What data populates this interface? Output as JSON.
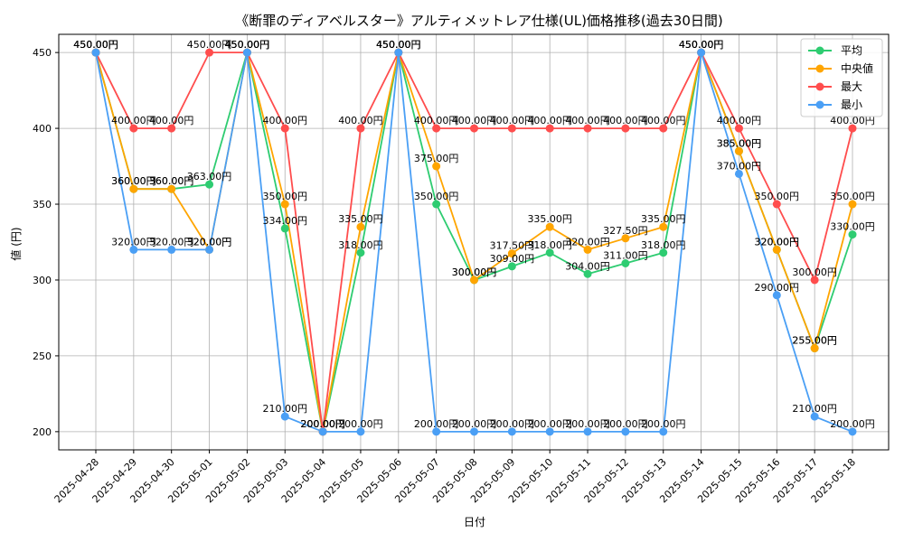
{
  "chart_data": {
    "type": "line",
    "title": "《断罪のディアベルスター》アルティメットレア仕様(UL)価格推移(過去30日間)",
    "xlabel": "日付",
    "ylabel": "値 (円)",
    "ylim": [
      188,
      462
    ],
    "yticks": [
      200,
      250,
      300,
      350,
      400,
      450
    ],
    "grid": true,
    "legend_position": "top-right",
    "value_suffix": "円",
    "categories": [
      "2025-04-28",
      "2025-04-29",
      "2025-04-30",
      "2025-05-01",
      "2025-05-02",
      "2025-05-03",
      "2025-05-04",
      "2025-05-05",
      "2025-05-06",
      "2025-05-07",
      "2025-05-08",
      "2025-05-09",
      "2025-05-10",
      "2025-05-11",
      "2025-05-12",
      "2025-05-13",
      "2025-05-14",
      "2025-05-15",
      "2025-05-16",
      "2025-05-17",
      "2025-05-18"
    ],
    "series": [
      {
        "name": "平均",
        "color": "#2ecc71",
        "values": [
          450,
          360,
          360,
          363,
          450,
          334,
          200,
          318,
          450,
          350,
          300,
          309,
          318,
          304,
          311,
          318,
          450,
          385,
          320,
          255,
          330
        ]
      },
      {
        "name": "中央値",
        "color": "#ffa500",
        "values": [
          450,
          360,
          360,
          320,
          450,
          350,
          200,
          335,
          450,
          375,
          300,
          317.5,
          335,
          320,
          327.5,
          335,
          450,
          385,
          320,
          255,
          350
        ]
      },
      {
        "name": "最大",
        "color": "#ff4d4d",
        "values": [
          450,
          400,
          400,
          450,
          450,
          400,
          200,
          400,
          450,
          400,
          400,
          400,
          400,
          400,
          400,
          400,
          450,
          400,
          350,
          300,
          400
        ]
      },
      {
        "name": "最小",
        "color": "#4a9ff5",
        "values": [
          450,
          320,
          320,
          320,
          450,
          210,
          200,
          200,
          450,
          200,
          200,
          200,
          200,
          200,
          200,
          200,
          450,
          370,
          290,
          210,
          200
        ]
      }
    ]
  }
}
